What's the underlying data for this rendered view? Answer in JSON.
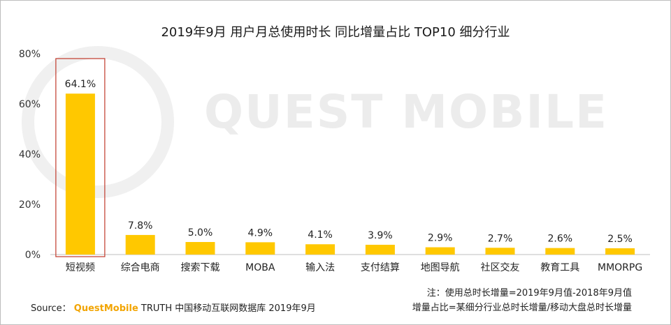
{
  "chart_data": {
    "type": "bar",
    "title": "2019年9月 用户月总使用时长 同比增量占比 TOP10 细分行业",
    "categories": [
      "短视频",
      "综合电商",
      "搜索下载",
      "MOBA",
      "输入法",
      "支付结算",
      "地图导航",
      "社区交友",
      "教育工具",
      "MMORPG"
    ],
    "values": [
      64.1,
      7.8,
      5.0,
      4.9,
      4.1,
      3.9,
      2.9,
      2.7,
      2.6,
      2.5
    ],
    "value_labels": [
      "64.1%",
      "7.8%",
      "5.0%",
      "4.9%",
      "4.1%",
      "3.9%",
      "2.9%",
      "2.7%",
      "2.6%",
      "2.5%"
    ],
    "yticks": [
      "0%",
      "20%",
      "40%",
      "60%",
      "80%"
    ],
    "ylim": [
      0,
      80
    ],
    "xlabel": "",
    "ylabel": "",
    "bar_color": "#ffc800",
    "highlight_color": "#c0392b",
    "highlight_index": 0
  },
  "watermark": "QUEST MOBILE",
  "notes": {
    "line1": "注：使用总时长增量=2019年9月值-2018年9月值",
    "line2": "增量占比=某细分行业总时长增量/移动大盘总时长增量"
  },
  "source": {
    "prefix": "Source：",
    "brand": "QuestMobile",
    "text": "TRUTH 中国移动互联网数据库 2019年9月"
  }
}
